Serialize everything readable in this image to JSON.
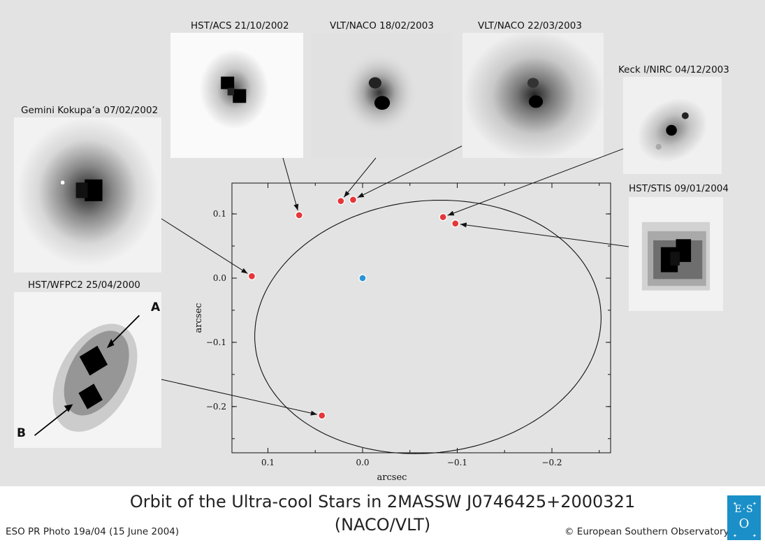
{
  "footer": {
    "title_line1": "Orbit of the Ultra-cool Stars in 2MASSW J0746425+2000321",
    "title_line2": "(NACO/VLT)",
    "credit_left": "ESO PR Photo 19a/04 (15 June 2004)",
    "credit_right": "© European Southern Observatory"
  },
  "logo": {
    "text": "ESO"
  },
  "panels": {
    "wfpc2": {
      "label": "HST/WFPC2 25/04/2000",
      "marker_a": "A",
      "marker_b": "B"
    },
    "gemini": {
      "label": "Gemini Kokupa’a 07/02/2002"
    },
    "acs": {
      "label": "HST/ACS 21/10/2002"
    },
    "naco1": {
      "label": "VLT/NACO 18/02/2003"
    },
    "naco2": {
      "label": "VLT/NACO 22/03/2003"
    },
    "keck": {
      "label": "Keck I/NIRC 04/12/2003"
    },
    "stis": {
      "label": "HST/STIS 09/01/2004"
    }
  },
  "colors": {
    "figure_bg": "#e3e3e3",
    "observation_point": "#e5373a",
    "primary_star": "#2a94d6",
    "orbit_line": "#111111",
    "logo_bg": "#1a8fc8"
  },
  "chart_data": {
    "type": "scatter",
    "title": "",
    "xlabel": "arcsec",
    "ylabel": "arcsec",
    "x_axis_inverted": true,
    "xlim": [
      0.138,
      -0.262
    ],
    "ylim": [
      -0.272,
      0.148
    ],
    "xticks": [
      0.1,
      0.0,
      -0.1,
      -0.2
    ],
    "xtick_labels": [
      "0.1",
      "0.0",
      "−0.1",
      "−0.2"
    ],
    "yticks": [
      0.1,
      0.0,
      -0.1,
      -0.2
    ],
    "ytick_labels": [
      "0.1",
      "0.0",
      "−0.1",
      "−0.2"
    ],
    "grid": false,
    "legend": "none",
    "primary": {
      "x": 0.0,
      "y": 0.0
    },
    "orbit_ellipse": {
      "cx": -0.069,
      "cy": -0.076,
      "rx": 0.18,
      "ry": 0.2,
      "rotation_deg": 22
    },
    "observations": [
      {
        "epoch": "HST/WFPC2 25/04/2000",
        "x": 0.043,
        "y": -0.214
      },
      {
        "epoch": "Gemini Kokupa’a 07/02/2002",
        "x": 0.117,
        "y": 0.003
      },
      {
        "epoch": "HST/ACS 21/10/2002",
        "x": 0.067,
        "y": 0.098
      },
      {
        "epoch": "VLT/NACO 18/02/2003",
        "x": 0.023,
        "y": 0.12
      },
      {
        "epoch": "VLT/NACO 22/03/2003",
        "x": 0.01,
        "y": 0.122
      },
      {
        "epoch": "Keck I/NIRC 04/12/2003",
        "x": -0.085,
        "y": 0.095
      },
      {
        "epoch": "HST/STIS 09/01/2004",
        "x": -0.098,
        "y": 0.085
      }
    ]
  }
}
